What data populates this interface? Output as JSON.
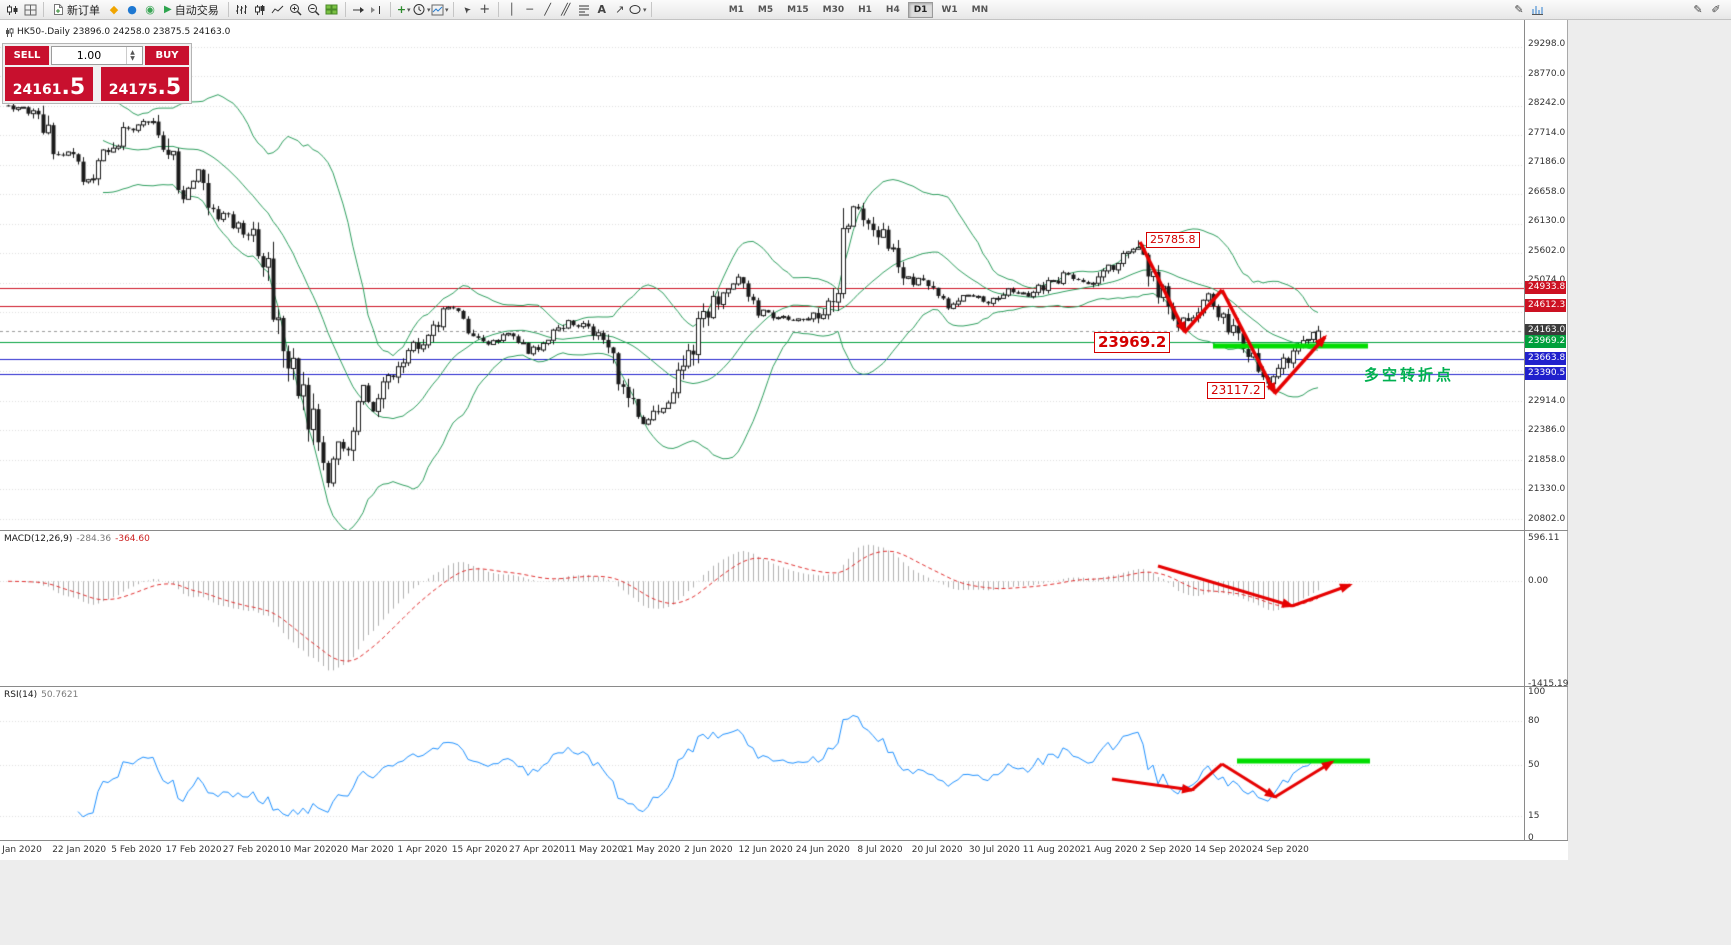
{
  "toolbar": {
    "new_order_label": "新订单",
    "autotrading_label": "自动交易",
    "timeframes": [
      "M1",
      "M5",
      "M15",
      "M30",
      "H1",
      "H4",
      "D1",
      "W1",
      "MN"
    ],
    "active_timeframe": "D1",
    "glyphs": {
      "dropdown": "▾",
      "play": "▶",
      "text_tool": "A",
      "cursor": "➤",
      "vline": "│",
      "hline": "─",
      "tline": "╱",
      "channel": "╱╱",
      "arrow_tool": "↗",
      "pencil": "✎",
      "pencil2": "✐",
      "community": "◆",
      "market": "●",
      "signals": "◉",
      "crosshair": "+",
      "indicators_plus": "+"
    }
  },
  "chart": {
    "info_line": "HK50-.Daily 23896.0 24258.0 23875.5 24163.0",
    "trade_panel": {
      "sell_label": "SELL",
      "buy_label": "BUY",
      "volume": "1.00",
      "sell_price": {
        "main": "24161",
        "big": ".5"
      },
      "buy_price": {
        "main": "24175",
        "big": ".5"
      }
    },
    "annotations": {
      "peak_price": "25785.8",
      "level_price": "23969.2",
      "low_price": "23117.2",
      "turning_point_text": "多空转折点"
    },
    "price_tags": [
      {
        "text": "24933.8",
        "price": 24933.8,
        "bg": "#cc1122"
      },
      {
        "text": "24612.3",
        "price": 24612.3,
        "bg": "#cc1122"
      },
      {
        "text": "24163.0",
        "price": 24163.0,
        "bg": "#3c3c3c"
      },
      {
        "text": "23969.2",
        "price": 23969.2,
        "bg": "#00a03c"
      },
      {
        "text": "23663.8",
        "price": 23663.8,
        "bg": "#2020cc"
      },
      {
        "text": "23390.5",
        "price": 23390.5,
        "bg": "#2020cc"
      }
    ],
    "scale_labels": [
      "29298.0",
      "28770.0",
      "28242.0",
      "27714.0",
      "27186.0",
      "26658.0",
      "26130.0",
      "25602.0",
      "25074.0",
      "22914.0",
      "22386.0",
      "21858.0",
      "21330.0",
      "20802.0"
    ],
    "hlines": [
      {
        "price": 24933.8,
        "color": "#cc1122"
      },
      {
        "price": 24612.3,
        "color": "#cc1122"
      },
      {
        "price": 23969.2,
        "color": "#00a03c"
      },
      {
        "price": 23663.8,
        "color": "#2020cc"
      },
      {
        "price": 23390.5,
        "color": "#2020cc"
      }
    ],
    "bid_line_price": 24163.0
  },
  "macd": {
    "name": "MACD(12,26,9)",
    "value_main": "-284.36",
    "value_signal": "-364.60",
    "scale_labels": [
      {
        "text": "596.11",
        "value": 596.11
      },
      {
        "text": "0.00",
        "value": 0
      },
      {
        "text": "-1415.19",
        "value": -1415.19
      }
    ]
  },
  "rsi": {
    "name": "RSI(14)",
    "value": "50.7621",
    "scale_labels": [
      {
        "text": "100",
        "value": 100
      },
      {
        "text": "80",
        "value": 80
      },
      {
        "text": "50",
        "value": 50
      },
      {
        "text": "15",
        "value": 15
      },
      {
        "text": "0",
        "value": 0
      }
    ],
    "levels": [
      80,
      50,
      15
    ]
  },
  "date_axis": [
    "Jan 2020",
    "22 Jan 2020",
    "5 Feb 2020",
    "17 Feb 2020",
    "27 Feb 2020",
    "10 Mar 2020",
    "20 Mar 2020",
    "1 Apr 2020",
    "15 Apr 2020",
    "27 Apr 2020",
    "11 May 2020",
    "21 May 2020",
    "2 Jun 2020",
    "12 Jun 2020",
    "24 Jun 2020",
    "8 Jul 2020",
    "20 Jul 2020",
    "30 Jul 2020",
    "11 Aug 2020",
    "21 Aug 2020",
    "2 Sep 2020",
    "14 Sep 2020",
    "24 Sep 2020"
  ],
  "colors": {
    "candle_up_fill": "#ffffff",
    "candle_down_fill": "#1a1a1a",
    "candle_border": "#1a1a1a",
    "bollinger": "#2e9e5e",
    "grid": "#dedede",
    "bid_line": "#9a9a9a",
    "macd_histogram": "#b0b0b0",
    "macd_signal": "#e03030",
    "rsi_line": "#1e90ff",
    "arrow_red": "#e60000",
    "highlight_green": "#00dd00"
  },
  "chart_data": {
    "type": "candlestick",
    "symbol": "HK50",
    "timeframe": "Daily",
    "ohlc_display": {
      "open": "23896.0",
      "high": "24258.0",
      "low": "23875.5",
      "close": "24163.0"
    },
    "indicators": [
      "Bollinger Bands(20,2)",
      "MACD(12,26,9)",
      "RSI(14)"
    ],
    "key_points": {
      "september_high": 25785.8,
      "september_low": 23117.2,
      "last_close": 24163.0,
      "support_level": 23969.2
    },
    "price_path": [
      [
        0,
        28200
      ],
      [
        6,
        28000
      ],
      [
        10,
        27250
      ],
      [
        13,
        27500
      ],
      [
        15,
        26750
      ],
      [
        19,
        27300
      ],
      [
        24,
        27800
      ],
      [
        29,
        27950
      ],
      [
        33,
        27200
      ],
      [
        35,
        26600
      ],
      [
        38,
        27000
      ],
      [
        41,
        26350
      ],
      [
        45,
        26100
      ],
      [
        49,
        25800
      ],
      [
        52,
        25100
      ],
      [
        55,
        24000
      ],
      [
        58,
        23200
      ],
      [
        61,
        22400
      ],
      [
        64,
        21350
      ],
      [
        66,
        22300
      ],
      [
        68,
        22000
      ],
      [
        71,
        23100
      ],
      [
        73,
        22700
      ],
      [
        76,
        23300
      ],
      [
        80,
        23800
      ],
      [
        84,
        24100
      ],
      [
        88,
        24600
      ],
      [
        92,
        24200
      ],
      [
        96,
        23900
      ],
      [
        100,
        24100
      ],
      [
        104,
        23800
      ],
      [
        108,
        24000
      ],
      [
        112,
        24300
      ],
      [
        116,
        24200
      ],
      [
        120,
        23900
      ],
      [
        124,
        23000
      ],
      [
        127,
        22500
      ],
      [
        131,
        22900
      ],
      [
        135,
        23500
      ],
      [
        139,
        24400
      ],
      [
        143,
        24900
      ],
      [
        146,
        25100
      ],
      [
        150,
        24500
      ],
      [
        154,
        24400
      ],
      [
        158,
        24350
      ],
      [
        162,
        24450
      ],
      [
        166,
        25100
      ],
      [
        169,
        26500
      ],
      [
        172,
        26200
      ],
      [
        176,
        25700
      ],
      [
        180,
        25100
      ],
      [
        184,
        25000
      ],
      [
        188,
        24600
      ],
      [
        192,
        24800
      ],
      [
        196,
        24700
      ],
      [
        200,
        24900
      ],
      [
        204,
        24800
      ],
      [
        208,
        25000
      ],
      [
        212,
        25200
      ],
      [
        216,
        25000
      ],
      [
        220,
        25300
      ],
      [
        224,
        25500
      ],
      [
        226,
        25700
      ],
      [
        230,
        24900
      ],
      [
        234,
        24300
      ],
      [
        237,
        24500
      ],
      [
        240,
        24800
      ],
      [
        244,
        24300
      ],
      [
        248,
        23800
      ],
      [
        252,
        23250
      ],
      [
        255,
        23600
      ],
      [
        258,
        23900
      ],
      [
        262,
        24163
      ]
    ]
  }
}
